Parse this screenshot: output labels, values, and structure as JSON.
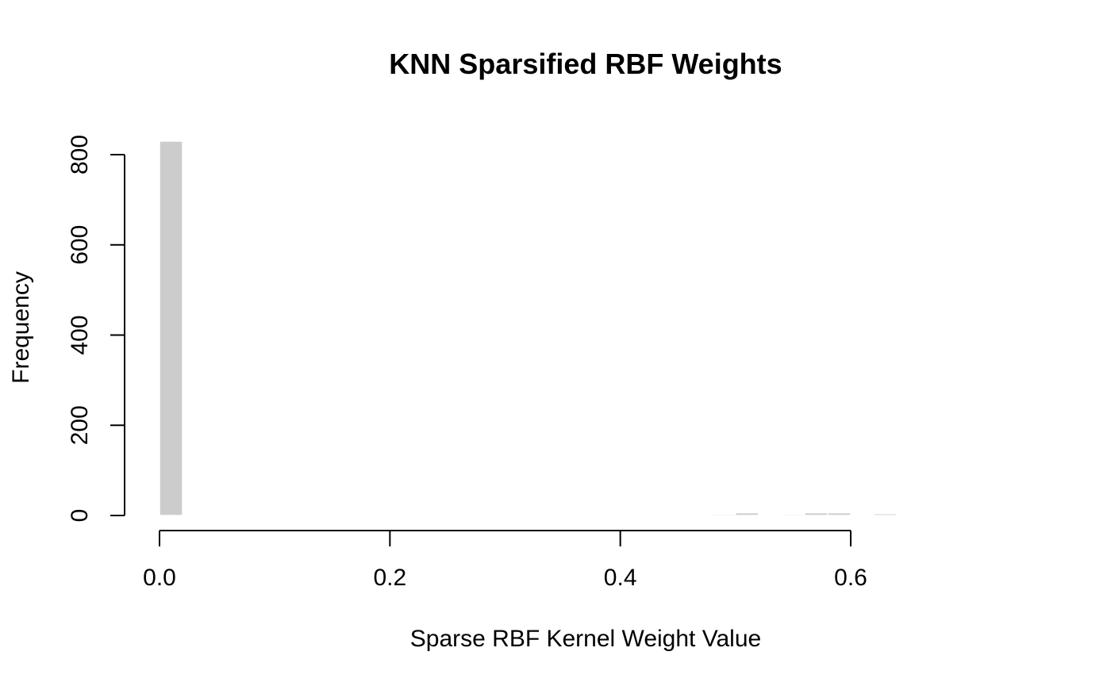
{
  "chart_data": {
    "type": "bar",
    "title": "KNN Sparsified RBF Weights",
    "xlabel": "Sparse RBF Kernel Weight Value",
    "ylabel": "Frequency",
    "xlim": [
      0,
      0.66
    ],
    "ylim": [
      0,
      800
    ],
    "x_ticks": [
      0.0,
      0.2,
      0.4,
      0.6
    ],
    "x_tick_labels": [
      "0.0",
      "0.2",
      "0.4",
      "0.6"
    ],
    "y_ticks": [
      0,
      200,
      400,
      600,
      800
    ],
    "y_tick_labels": [
      "0",
      "200",
      "400",
      "600",
      "800"
    ],
    "bin_width": 0.02,
    "bins": [
      {
        "start": 0.0,
        "end": 0.02,
        "count": 830
      },
      {
        "start": 0.32,
        "end": 0.34,
        "count": 1
      },
      {
        "start": 0.38,
        "end": 0.4,
        "count": 1
      },
      {
        "start": 0.48,
        "end": 0.5,
        "count": 3
      },
      {
        "start": 0.5,
        "end": 0.52,
        "count": 6
      },
      {
        "start": 0.52,
        "end": 0.54,
        "count": 1
      },
      {
        "start": 0.54,
        "end": 0.56,
        "count": 3
      },
      {
        "start": 0.56,
        "end": 0.58,
        "count": 6
      },
      {
        "start": 0.58,
        "end": 0.6,
        "count": 6
      },
      {
        "start": 0.6,
        "end": 0.62,
        "count": 2
      },
      {
        "start": 0.62,
        "end": 0.64,
        "count": 4
      },
      {
        "start": 0.64,
        "end": 0.66,
        "count": 1
      }
    ],
    "bar_color": "#cccccc",
    "grid": false,
    "legend": false
  }
}
